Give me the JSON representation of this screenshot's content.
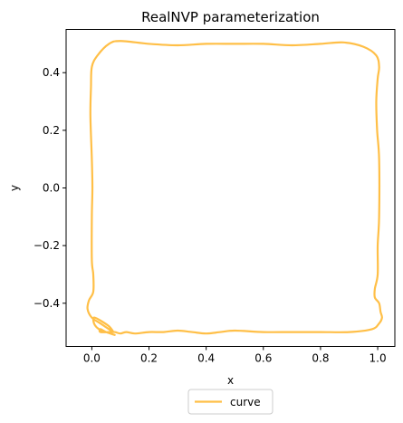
{
  "chart_data": {
    "type": "line",
    "title": "RealNVP parameterization",
    "xlabel": "x",
    "ylabel": "y",
    "xlim": [
      -0.09,
      1.06
    ],
    "ylim": [
      -0.55,
      0.55
    ],
    "x_ticks": [
      0.0,
      0.2,
      0.4,
      0.6,
      0.8,
      1.0
    ],
    "x_tick_labels": [
      "0.0",
      "0.2",
      "0.4",
      "0.6",
      "0.8",
      "1.0"
    ],
    "y_ticks": [
      0.4,
      0.2,
      0.0,
      -0.2,
      -0.4
    ],
    "y_tick_labels": [
      "0.4",
      "0.2",
      "0.0",
      "−0.2",
      "−0.4"
    ],
    "grid": false,
    "legend_position": "bottom-center",
    "series": [
      {
        "name": "curve",
        "color": "#FFBF47",
        "x": [
          0.08,
          0.05,
          0.025,
          0.01,
          0.005,
          0.01,
          0.03,
          0.06,
          0.075,
          0.06,
          0.03,
          0.0,
          -0.015,
          -0.01,
          0.005,
          0.005,
          0.0,
          0.0,
          0.002,
          0.0,
          -0.005,
          -0.003,
          0.0,
          0.02,
          0.06,
          0.1,
          0.2,
          0.3,
          0.4,
          0.5,
          0.6,
          0.7,
          0.8,
          0.88,
          0.95,
          0.995,
          1.005,
          1.0,
          0.995,
          0.998,
          1.005,
          1.005,
          1.0,
          1.0,
          0.99,
          0.99,
          1.005,
          1.01,
          1.015,
          1.005,
          0.98,
          0.9,
          0.8,
          0.7,
          0.6,
          0.5,
          0.45,
          0.4,
          0.35,
          0.3,
          0.25,
          0.2,
          0.15,
          0.12,
          0.1,
          0.08,
          0.06,
          0.03,
          0.03,
          0.05,
          0.08
        ],
        "y": [
          -0.51,
          -0.5,
          -0.49,
          -0.475,
          -0.455,
          -0.45,
          -0.46,
          -0.48,
          -0.5,
          -0.49,
          -0.47,
          -0.45,
          -0.42,
          -0.39,
          -0.36,
          -0.3,
          -0.25,
          -0.1,
          0.0,
          0.1,
          0.25,
          0.35,
          0.42,
          0.46,
          0.5,
          0.51,
          0.5,
          0.495,
          0.5,
          0.5,
          0.5,
          0.495,
          0.5,
          0.505,
          0.49,
          0.46,
          0.42,
          0.38,
          0.3,
          0.2,
          0.1,
          -0.1,
          -0.2,
          -0.3,
          -0.35,
          -0.38,
          -0.4,
          -0.43,
          -0.45,
          -0.47,
          -0.49,
          -0.5,
          -0.5,
          -0.5,
          -0.5,
          -0.495,
          -0.5,
          -0.505,
          -0.5,
          -0.495,
          -0.5,
          -0.5,
          -0.505,
          -0.5,
          -0.505,
          -0.5,
          -0.5,
          -0.5,
          -0.49,
          -0.5,
          -0.51
        ]
      }
    ]
  }
}
